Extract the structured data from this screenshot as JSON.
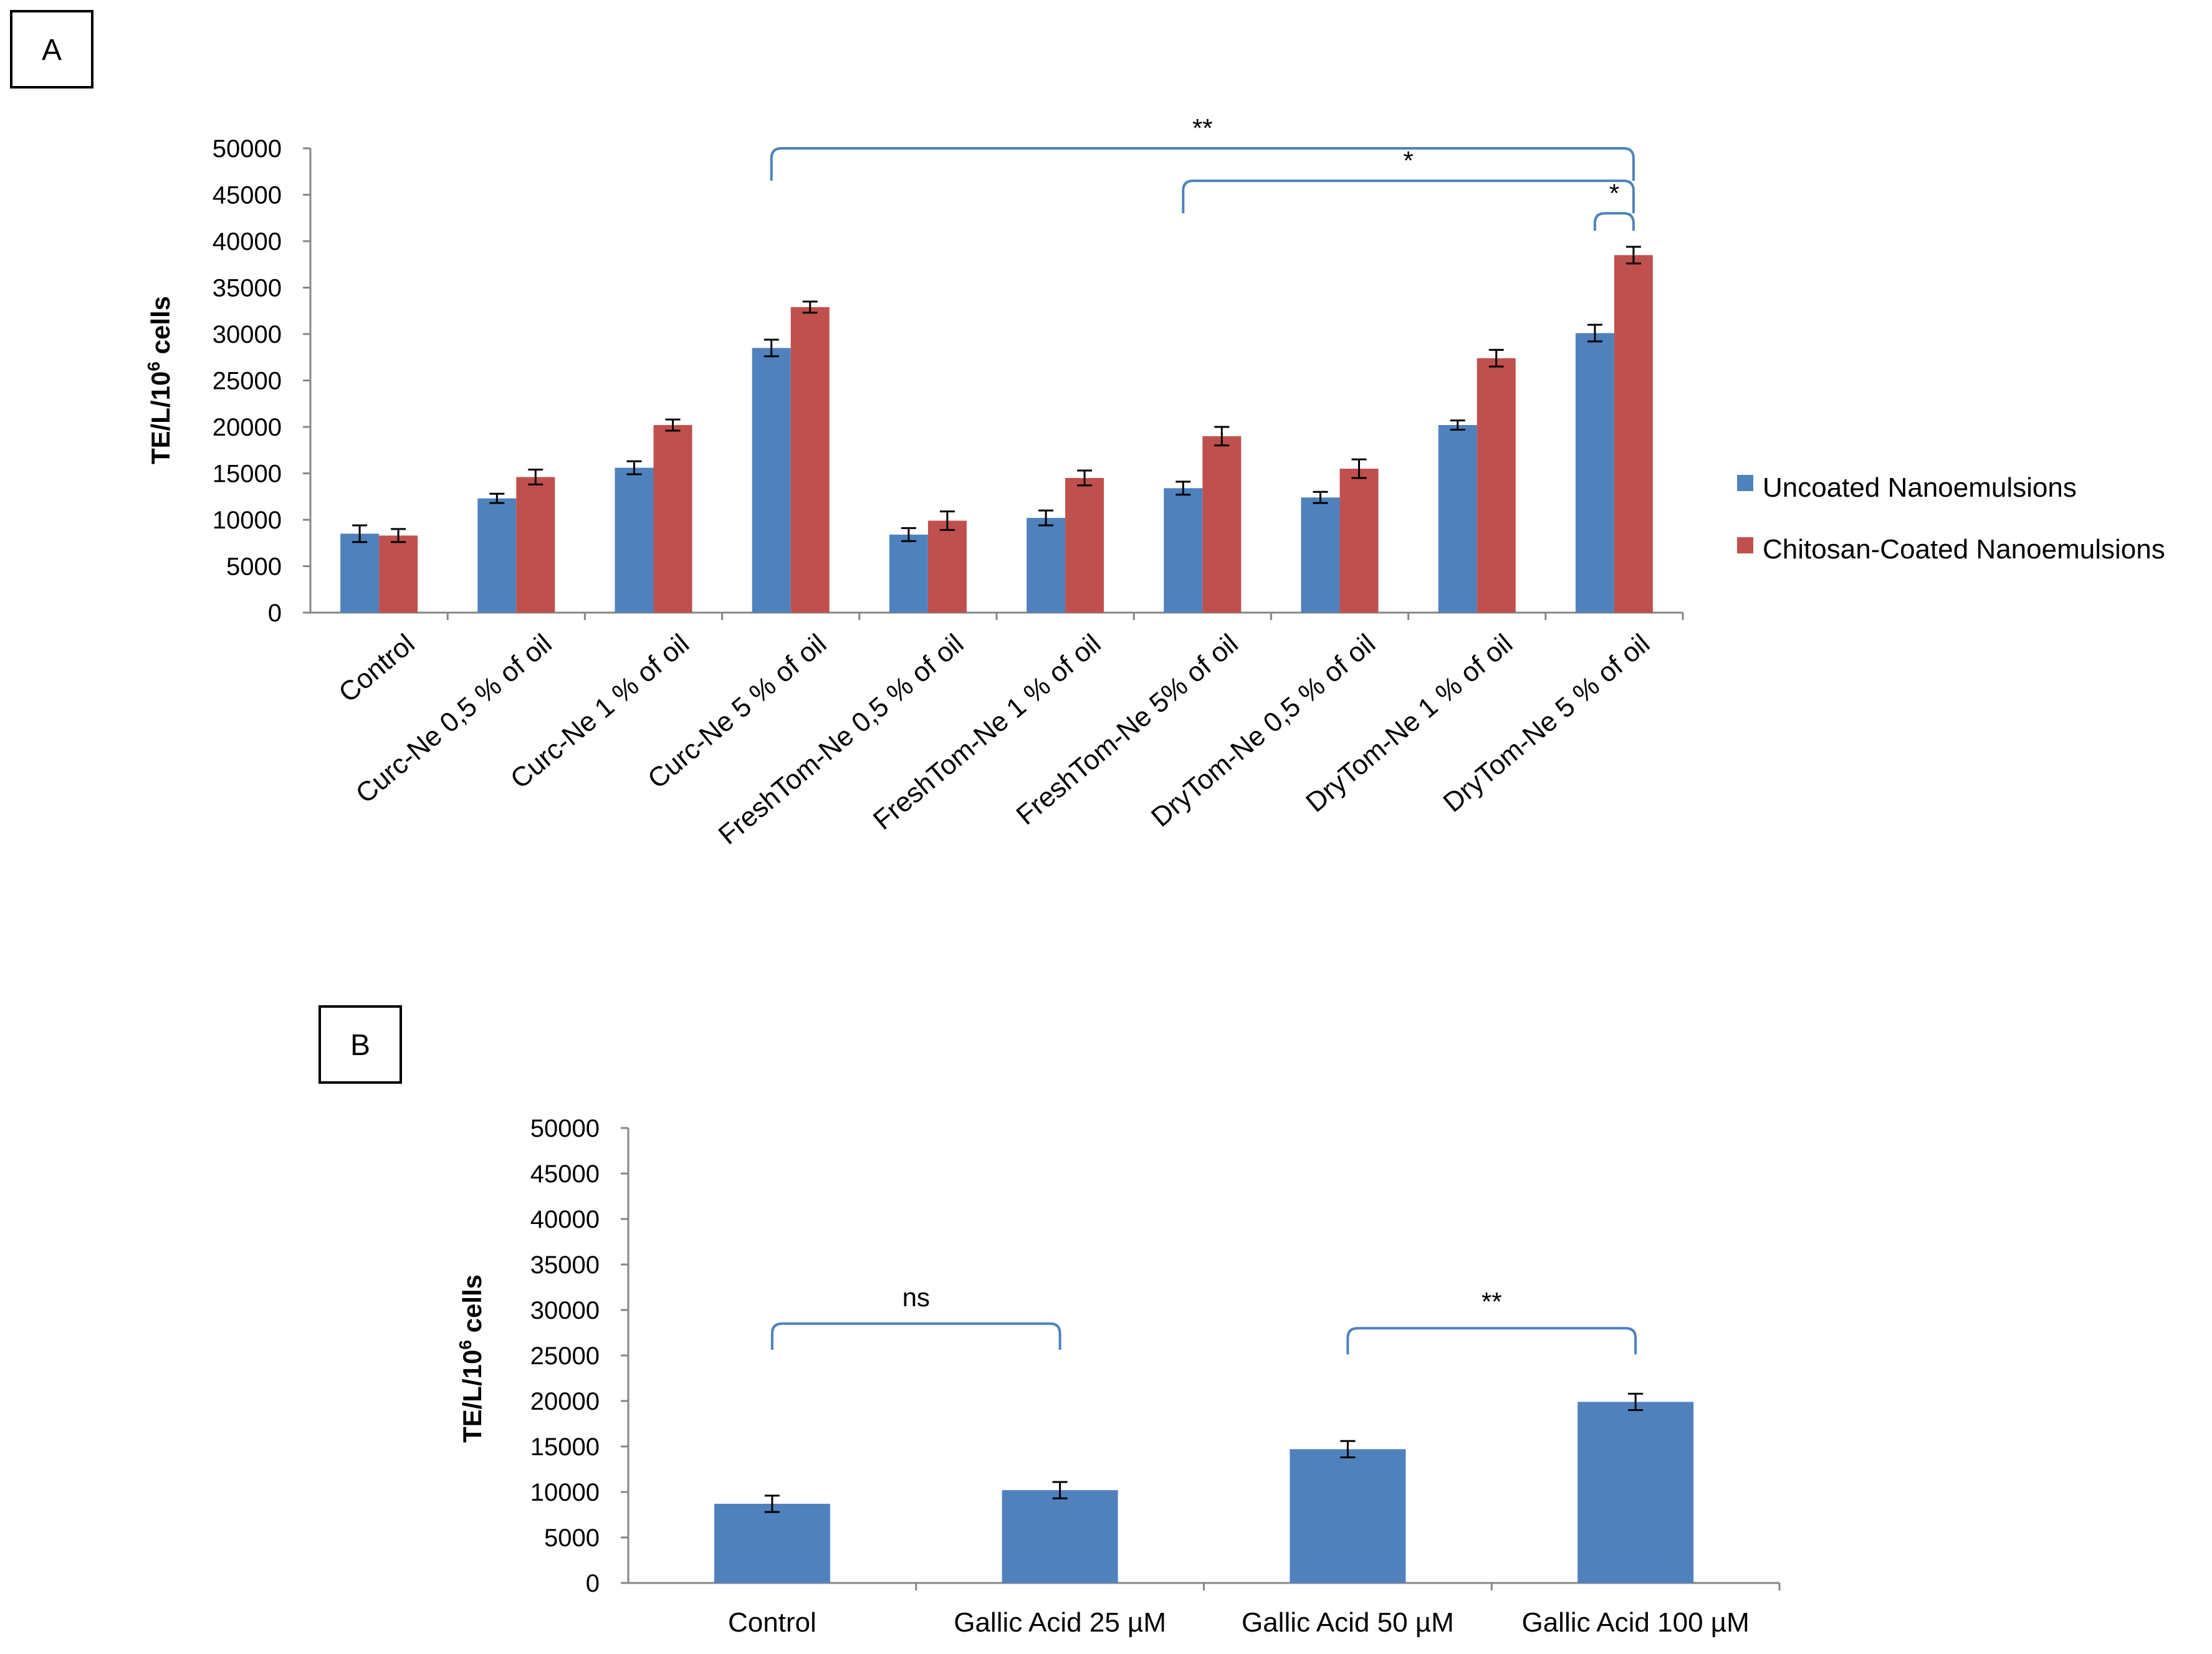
{
  "panels": {
    "A": {
      "label": "A"
    },
    "B": {
      "label": "B"
    }
  },
  "colors": {
    "uncoated": "#4f81bd",
    "coated": "#c0504d",
    "bracket": "#4f81bd",
    "axis": "#868686"
  },
  "chart_data": [
    {
      "id": "A",
      "type": "bar",
      "title": "",
      "ylabel_parts": [
        "TE/L/10",
        "6",
        " cells"
      ],
      "ylim": [
        0,
        50000
      ],
      "yticks": [
        0,
        5000,
        10000,
        15000,
        20000,
        25000,
        30000,
        35000,
        40000,
        45000,
        50000
      ],
      "categories": [
        "Control",
        "Curc-Ne 0,5 % of oil",
        "Curc-Ne 1 % of oil",
        "Curc-Ne 5 % of oil",
        "FreshTom-Ne 0,5 % of oil",
        "FreshTom-Ne 1 % of oil",
        "FreshTom-Ne 5% of oil",
        "DryTom-Ne 0,5 % of oil",
        "DryTom-Ne 1 % of oil",
        "DryTom-Ne 5 % of oil"
      ],
      "series": [
        {
          "name": "Uncoated Nanoemulsions",
          "values": [
            8500,
            12300,
            15600,
            28500,
            8400,
            10200,
            13400,
            12400,
            20200,
            30100
          ],
          "errors": [
            900,
            500,
            700,
            900,
            700,
            800,
            700,
            600,
            500,
            900
          ]
        },
        {
          "name": "Chitosan-Coated Nanoemulsions",
          "values": [
            8300,
            14600,
            20200,
            32900,
            9900,
            14500,
            19000,
            15500,
            27400,
            38500
          ],
          "errors": [
            700,
            800,
            600,
            600,
            1000,
            800,
            1000,
            1000,
            900,
            900
          ]
        }
      ],
      "legend_position": "right",
      "annotations": [
        {
          "text": "**",
          "from": [
            3,
            0
          ],
          "to": [
            9,
            1
          ],
          "level": 50000
        },
        {
          "text": "*",
          "from": [
            6,
            0
          ],
          "to": [
            9,
            1
          ],
          "level": 46500
        },
        {
          "text": "*",
          "from": [
            9,
            0
          ],
          "to": [
            9,
            1
          ],
          "level": 43000
        }
      ]
    },
    {
      "id": "B",
      "type": "bar",
      "title": "",
      "ylabel_parts": [
        "TE/L/10",
        "6",
        " cells"
      ],
      "ylim": [
        0,
        50000
      ],
      "yticks": [
        0,
        5000,
        10000,
        15000,
        20000,
        25000,
        30000,
        35000,
        40000,
        45000,
        50000
      ],
      "categories": [
        "Control",
        "Gallic Acid 25 µM",
        "Gallic Acid 50 µM",
        "Gallic Acid 100 µM"
      ],
      "series": [
        {
          "name": "",
          "values": [
            8700,
            10200,
            14700,
            19900
          ],
          "errors": [
            900,
            900,
            900,
            900
          ]
        }
      ],
      "annotations": [
        {
          "text": "ns",
          "from": 0,
          "to": 1,
          "level": 28500
        },
        {
          "text": "**",
          "from": 2,
          "to": 3,
          "level": 28000
        }
      ]
    }
  ]
}
